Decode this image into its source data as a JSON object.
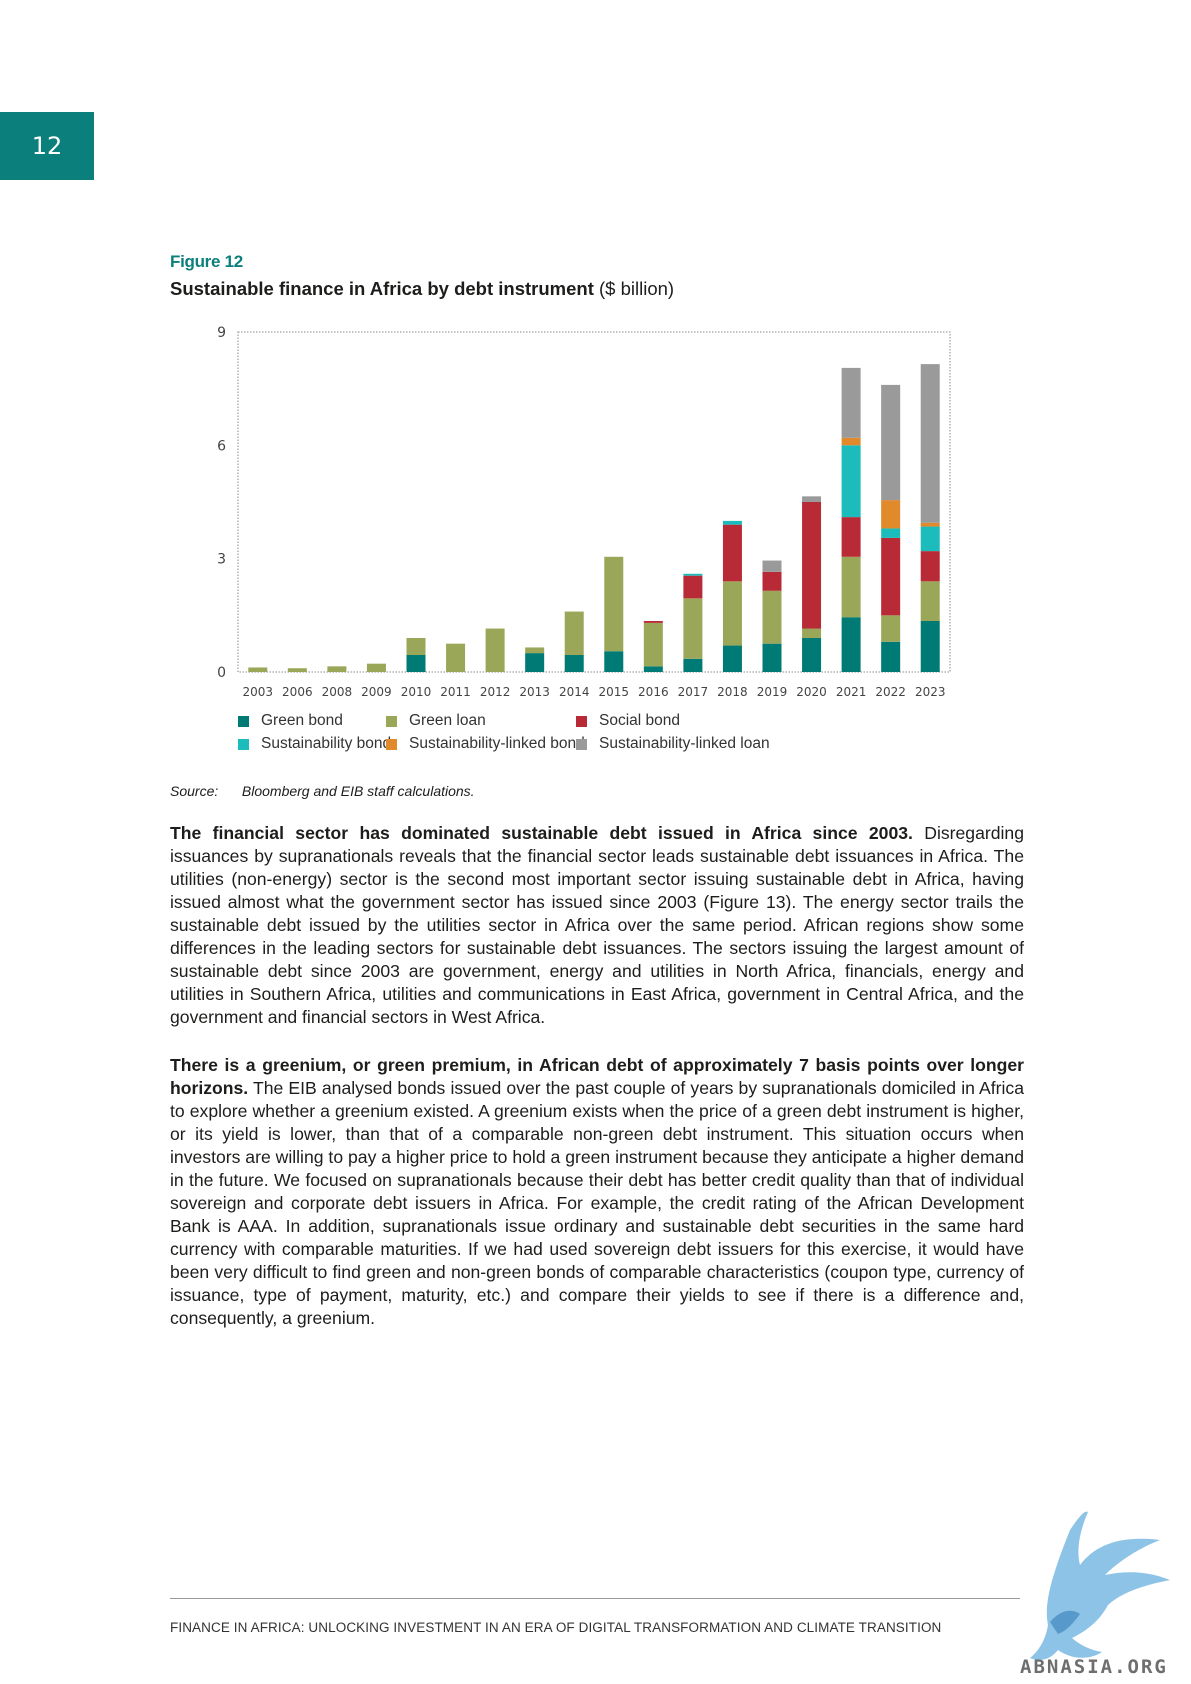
{
  "page_number": "12",
  "figure": {
    "label": "Figure 12",
    "title_bold": "Sustainable finance in Africa by debt instrument",
    "title_unit": "($ billion)"
  },
  "colors": {
    "teal": "#0b7f7c",
    "green_bond": "#007a74",
    "green_loan": "#9ba758",
    "social_bond": "#b82a35",
    "sustainability_bond": "#1cbcbc",
    "sustainability_linked_bond": "#e08a2c",
    "sustainability_linked_loan": "#9a9a9a"
  },
  "chart_data": {
    "type": "bar",
    "stacked": true,
    "categories": [
      "2003",
      "2006",
      "2008",
      "2009",
      "2010",
      "2011",
      "2012",
      "2013",
      "2014",
      "2015",
      "2016",
      "2017",
      "2018",
      "2019",
      "2020",
      "2021",
      "2022",
      "2023"
    ],
    "ylim": [
      0,
      9
    ],
    "yticks": [
      "0",
      "3",
      "6",
      "9"
    ],
    "grid": false,
    "legend_position": "bottom",
    "series": [
      {
        "name": "Green bond",
        "key": "green_bond",
        "values": [
          0,
          0,
          0,
          0,
          0.45,
          0,
          0,
          0.5,
          0.45,
          0.55,
          0.15,
          0.35,
          0.7,
          0.75,
          0.9,
          1.45,
          0.8,
          1.35
        ]
      },
      {
        "name": "Green loan",
        "key": "green_loan",
        "values": [
          0.12,
          0.1,
          0.15,
          0.22,
          0.45,
          0.75,
          1.15,
          0.15,
          1.15,
          2.5,
          1.15,
          1.6,
          1.7,
          1.4,
          0.25,
          1.6,
          0.7,
          1.05
        ]
      },
      {
        "name": "Social bond",
        "key": "social_bond",
        "values": [
          0,
          0,
          0,
          0,
          0,
          0,
          0,
          0,
          0,
          0,
          0.05,
          0.6,
          1.5,
          0.5,
          3.35,
          1.05,
          2.05,
          0.8
        ]
      },
      {
        "name": "Sustainability bond",
        "key": "sustainability_bond",
        "values": [
          0,
          0,
          0,
          0,
          0,
          0,
          0,
          0,
          0,
          0,
          0,
          0.05,
          0.1,
          0,
          0,
          1.9,
          0.25,
          0.65
        ]
      },
      {
        "name": "Sustainability-linked bond",
        "key": "sustainability_linked_bond",
        "values": [
          0,
          0,
          0,
          0,
          0,
          0,
          0,
          0,
          0,
          0,
          0,
          0,
          0,
          0,
          0,
          0.2,
          0.75,
          0.1
        ]
      },
      {
        "name": "Sustainability-linked loan",
        "key": "sustainability_linked_loan",
        "values": [
          0,
          0,
          0,
          0,
          0,
          0,
          0,
          0,
          0,
          0,
          0,
          0,
          0,
          0.3,
          0.15,
          1.85,
          3.05,
          4.2
        ]
      }
    ]
  },
  "source": {
    "label": "Source:",
    "text": "Bloomberg and EIB staff calculations."
  },
  "paragraphs": {
    "p1_lead": "The financial sector has dominated sustainable debt issued in Africa since 2003.",
    "p1_body": " Disregarding issuances by supranationals reveals that the financial sector leads sustainable debt issuances in Africa. The utilities (non-energy) sector is the second most important sector issuing sustainable debt in Africa, having issued almost what the government sector has issued since 2003 (Figure 13). The energy sector trails the sustainable debt issued by the utilities sector in Africa over the same period. African regions show some differences in the leading sectors for sustainable debt issuances. The sectors issuing the largest amount of sustainable debt since 2003 are government, energy and utilities in North Africa, financials, energy and utilities in Southern Africa, utilities and communications in East Africa, government in Central Africa, and the government and financial sectors in West Africa.",
    "p2_lead": "There is a greenium, or green premium, in African debt of approximately 7 basis points over longer horizons.",
    "p2_body": " The EIB analysed bonds issued over the past couple of years by supranationals domiciled in Africa to explore whether a greenium existed. A greenium exists when the price of a green debt instrument is higher, or its yield is lower, than that of a comparable non-green debt instrument. This situation occurs when investors are willing to pay a higher price to hold a green instrument because they anticipate a higher demand in the future. We focused on supranationals because their debt has better credit quality than that of individual sovereign and corporate debt issuers in Africa. For example, the credit rating of the African Development Bank is AAA. In addition, supranationals issue ordinary and sustainable debt securities in the same hard currency with comparable maturities. If we had used sovereign debt issuers for this exercise, it would have been very difficult to find green and non-green bonds of comparable characteristics (coupon type, currency of issuance, type of payment, maturity, etc.) and compare their yields to see if there is a difference and, consequently, a greenium."
  },
  "footer": {
    "title": "FINANCE IN AFRICA: UNLOCKING INVESTMENT IN AN ERA OF DIGITAL TRANSFORMATION AND CLIMATE TRANSITION"
  },
  "watermark": {
    "text": "ABNASIA.ORG",
    "icon": "winged-lion-logo-icon"
  }
}
